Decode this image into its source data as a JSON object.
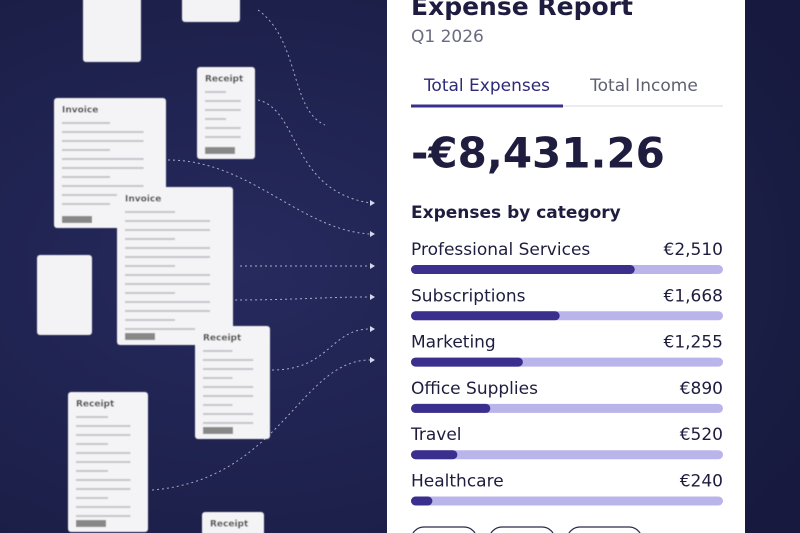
{
  "header": {
    "title": "Expense Report",
    "subtitle": "Q1 2026"
  },
  "tabs": [
    "Total Expenses",
    "Total Income"
  ],
  "total": "-€8,431.26",
  "documents": [
    "Receipt",
    "Invoice",
    "Invoice",
    "Receipt",
    "Receipt",
    "Receipt"
  ],
  "chart_data": {
    "type": "bar",
    "orientation": "horizontal",
    "title": "Expenses by category",
    "categories": [
      "Professional Services",
      "Subscriptions",
      "Marketing",
      "Office Supplies",
      "Travel",
      "Healthcare"
    ],
    "values": [
      2510,
      1668,
      1255,
      890,
      520,
      240
    ],
    "value_labels": [
      "€2,510",
      "€1,668",
      "€1,255",
      "€890",
      "€520",
      "€240"
    ],
    "xlim": [
      0,
      3500
    ],
    "color": "#3a2f8c",
    "track_color": "#b9b5ea"
  }
}
